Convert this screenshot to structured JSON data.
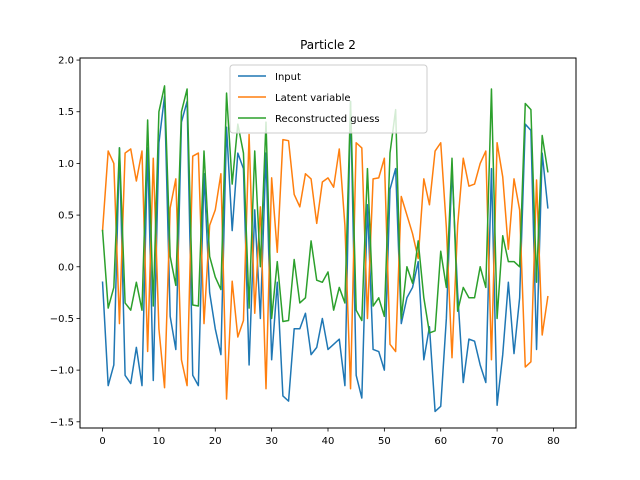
{
  "chart_data": {
    "type": "line",
    "title": "Particle 2",
    "xlabel": "",
    "ylabel": "",
    "xlim": [
      -4,
      84
    ],
    "ylim": [
      -1.56,
      2.02
    ],
    "xticks": [
      0,
      10,
      20,
      30,
      40,
      50,
      60,
      70,
      80
    ],
    "yticks": [
      -1.5,
      -1.0,
      -0.5,
      0.0,
      0.5,
      1.0,
      1.5,
      2.0
    ],
    "ytick_labels": [
      "−1.5",
      "−1.0",
      "−0.5",
      "0.0",
      "0.5",
      "1.0",
      "1.5",
      "2.0"
    ],
    "grid": false,
    "legend_position": "upper-center",
    "x": [
      0,
      1,
      2,
      3,
      4,
      5,
      6,
      7,
      8,
      9,
      10,
      11,
      12,
      13,
      14,
      15,
      16,
      17,
      18,
      19,
      20,
      21,
      22,
      23,
      24,
      25,
      26,
      27,
      28,
      29,
      30,
      31,
      32,
      33,
      34,
      35,
      36,
      37,
      38,
      39,
      40,
      41,
      42,
      43,
      44,
      45,
      46,
      47,
      48,
      49,
      50,
      51,
      52,
      53,
      54,
      55,
      56,
      57,
      58,
      59,
      60,
      61,
      62,
      63,
      64,
      65,
      66,
      67,
      68,
      69,
      70,
      71,
      72,
      73,
      74,
      75,
      76,
      77,
      78,
      79
    ],
    "series": [
      {
        "name": "Input",
        "color": "#1f77b4",
        "values": [
          -0.15,
          -1.15,
          -0.95,
          1.15,
          -1.05,
          -1.13,
          -0.78,
          -1.15,
          1.15,
          -1.1,
          1.2,
          1.65,
          -0.48,
          -0.8,
          1.4,
          1.6,
          -1.05,
          -1.15,
          0.9,
          -0.25,
          -0.6,
          -0.85,
          1.35,
          0.35,
          1.1,
          0.95,
          -0.95,
          0.55,
          -0.5,
          1.1,
          -0.9,
          -0.15,
          -1.25,
          -1.3,
          -0.6,
          -0.6,
          -0.45,
          -0.85,
          -0.78,
          -0.5,
          -0.8,
          -0.75,
          -0.7,
          -1.15,
          1.6,
          -1.05,
          -1.27,
          0.6,
          -0.8,
          -0.82,
          -1.0,
          0.75,
          0.95,
          -0.55,
          -0.3,
          -0.2,
          0.05,
          -0.9,
          -0.58,
          -1.4,
          -1.35,
          -0.5,
          0.95,
          -0.25,
          -1.12,
          -0.7,
          -0.72,
          -0.95,
          -1.12,
          0.95,
          -1.34,
          -0.85,
          -0.15,
          -0.84,
          -0.3,
          1.38,
          1.32,
          -0.8,
          1.1,
          0.57
        ]
      },
      {
        "name": "Latent variable",
        "color": "#ff7f0e",
        "values": [
          0.35,
          1.12,
          1.0,
          -0.55,
          1.1,
          1.14,
          0.83,
          1.12,
          -0.82,
          1.05,
          -0.6,
          -1.17,
          0.57,
          0.85,
          -0.9,
          -1.15,
          1.07,
          1.1,
          -0.55,
          0.4,
          0.55,
          0.9,
          -1.28,
          -0.14,
          -0.68,
          -0.52,
          1.28,
          -0.45,
          0.58,
          -1.18,
          0.86,
          0.14,
          1.23,
          1.22,
          0.7,
          0.58,
          0.9,
          0.85,
          0.42,
          0.82,
          0.86,
          0.77,
          1.14,
          0.4,
          -1.18,
          1.2,
          1.15,
          -0.5,
          0.85,
          0.86,
          1.05,
          -0.75,
          -0.82,
          0.68,
          0.5,
          0.32,
          0.08,
          0.85,
          0.6,
          1.12,
          1.2,
          0.38,
          -0.88,
          0.4,
          1.05,
          0.78,
          0.8,
          1.0,
          1.12,
          -0.9,
          1.2,
          0.87,
          0.17,
          0.85,
          0.55,
          -0.97,
          -0.92,
          0.84,
          -0.66,
          -0.29
        ]
      },
      {
        "name": "Reconstructed guess",
        "color": "#2ca02c",
        "values": [
          0.35,
          -0.4,
          -0.2,
          1.15,
          -0.35,
          -0.42,
          -0.15,
          -0.42,
          1.42,
          -0.38,
          1.5,
          1.75,
          0.1,
          -0.18,
          1.5,
          1.72,
          -0.37,
          -0.38,
          1.12,
          0.1,
          -0.1,
          -0.22,
          1.68,
          0.8,
          1.38,
          1.1,
          -0.4,
          1.12,
          0.0,
          1.4,
          -0.5,
          0.05,
          -0.53,
          -0.52,
          0.07,
          -0.35,
          -0.3,
          0.25,
          -0.13,
          -0.15,
          -0.05,
          -0.42,
          -0.2,
          -0.35,
          1.6,
          -0.42,
          -0.52,
          0.95,
          -0.38,
          -0.3,
          -0.48,
          1.1,
          1.52,
          -0.5,
          0.0,
          -0.16,
          0.25,
          -0.3,
          -0.64,
          -0.62,
          0.15,
          -0.2,
          1.05,
          -0.43,
          -0.2,
          -0.3,
          -0.3,
          0.0,
          -0.2,
          1.72,
          -0.5,
          0.3,
          0.05,
          0.05,
          0.0,
          1.58,
          1.52,
          -0.15,
          1.27,
          0.92
        ]
      }
    ]
  }
}
